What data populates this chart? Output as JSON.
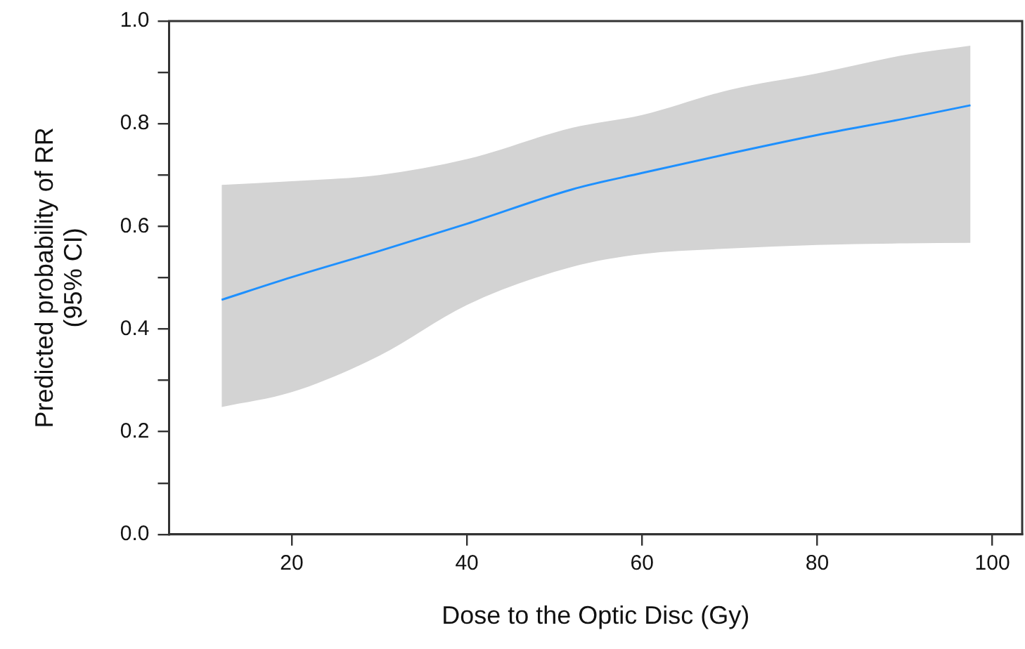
{
  "chart_data": {
    "type": "line",
    "xlabel": "Dose to the Optic Disc (Gy)",
    "ylabel": "Predicted probability of RR\n(95% CI)",
    "x": [
      12,
      20,
      30,
      40,
      52,
      60,
      70,
      80,
      90,
      97.5
    ],
    "series": [
      {
        "color": "#1e90ff",
        "values": [
          0.457,
          0.501,
          0.552,
          0.605,
          0.672,
          0.704,
          0.742,
          0.778,
          0.81,
          0.836
        ],
        "lower": [
          0.248,
          0.277,
          0.348,
          0.447,
          0.521,
          0.546,
          0.557,
          0.564,
          0.567,
          0.568
        ],
        "upper": [
          0.681,
          0.688,
          0.7,
          0.731,
          0.792,
          0.817,
          0.866,
          0.898,
          0.934,
          0.952
        ]
      }
    ],
    "xlim": [
      6,
      103.4
    ],
    "xticks": [
      20,
      40,
      60,
      80,
      100
    ],
    "ylim": [
      0,
      1
    ],
    "yticks": [
      {
        "value": 0,
        "label": "0.0"
      },
      {
        "value": 0.1,
        "label": null
      },
      {
        "value": 0.2,
        "label": "0.2"
      },
      {
        "value": 0.3,
        "label": null
      },
      {
        "value": 0.4,
        "label": "0.4"
      },
      {
        "value": 0.5,
        "label": null
      },
      {
        "value": 0.6,
        "label": "0.6"
      },
      {
        "value": 0.7,
        "label": null
      },
      {
        "value": 0.8,
        "label": "0.8"
      },
      {
        "value": 0.9,
        "label": null
      },
      {
        "value": 1,
        "label": "1.0"
      }
    ],
    "grid": false,
    "legend": false,
    "marker": "none",
    "line_style": "solid"
  }
}
